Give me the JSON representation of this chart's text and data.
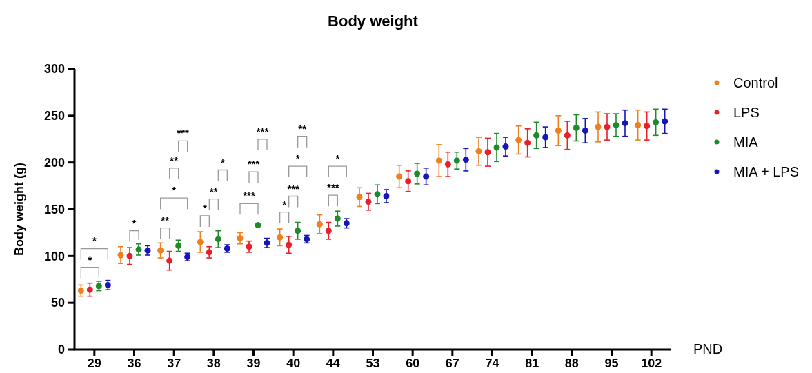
{
  "chart_data": {
    "type": "scatter",
    "title": "Body weight",
    "xlabel": "PND",
    "ylabel": "Body weight (g)",
    "categories": [
      "29",
      "36",
      "37",
      "38",
      "39",
      "40",
      "44",
      "53",
      "60",
      "67",
      "74",
      "81",
      "88",
      "95",
      "102"
    ],
    "ylim": [
      0,
      300
    ],
    "yticks": [
      0,
      50,
      100,
      150,
      200,
      250,
      300
    ],
    "legend": "right",
    "marker": "circle",
    "grid": false,
    "series": [
      {
        "name": "Control",
        "color": "#f07f1e",
        "values": [
          63,
          101,
          106,
          115,
          119,
          120,
          134,
          163,
          185,
          202,
          212,
          224,
          234,
          238,
          240
        ],
        "errors": [
          6,
          9,
          8,
          11,
          6,
          9,
          10,
          10,
          12,
          17,
          15,
          15,
          16,
          16,
          16
        ]
      },
      {
        "name": "LPS",
        "color": "#e8202a",
        "values": [
          64,
          100,
          95,
          104,
          110,
          112,
          127,
          158,
          180,
          198,
          211,
          221,
          229,
          238,
          239
        ],
        "errors": [
          7,
          9,
          10,
          6,
          6,
          9,
          9,
          9,
          11,
          13,
          15,
          15,
          15,
          14,
          15
        ]
      },
      {
        "name": "MIA",
        "color": "#1f8a2a",
        "values": [
          68,
          107,
          111,
          118,
          133,
          127,
          140,
          166,
          188,
          202,
          216,
          229,
          237,
          240,
          243
        ],
        "errors": [
          5,
          6,
          6,
          9,
          0,
          9,
          8,
          10,
          11,
          9,
          15,
          14,
          14,
          12,
          14
        ]
      },
      {
        "name": "MIA + LPS",
        "color": "#1515b8",
        "values": [
          69,
          106,
          99,
          108,
          114,
          118,
          135,
          164,
          185,
          203,
          217,
          227,
          234,
          242,
          244
        ],
        "errors": [
          5,
          5,
          4,
          4,
          5,
          4,
          5,
          7,
          9,
          12,
          10,
          11,
          13,
          14,
          13
        ]
      }
    ],
    "annotations": [
      "*",
      "*",
      "*",
      "**",
      "*",
      "**",
      "***",
      "*",
      "**",
      "*",
      "***",
      "***",
      "***",
      "*",
      "***",
      "*",
      "**",
      "***",
      "*"
    ]
  }
}
